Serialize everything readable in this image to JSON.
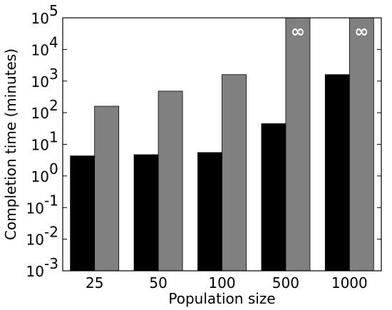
{
  "chart_data": {
    "type": "bar",
    "title": "",
    "xlabel": "Population size",
    "ylabel": "Completion time (minutes)",
    "y_scale": "log",
    "ylim": [
      0.001,
      100000
    ],
    "grid": false,
    "categories": [
      "25",
      "50",
      "100",
      "500",
      "1000"
    ],
    "y_ticks": [
      {
        "value": 0.001,
        "base": "10",
        "exp": "-3"
      },
      {
        "value": 0.01,
        "base": "10",
        "exp": "-2"
      },
      {
        "value": 0.1,
        "base": "10",
        "exp": "-1"
      },
      {
        "value": 1,
        "base": "10",
        "exp": "0"
      },
      {
        "value": 10,
        "base": "10",
        "exp": "1"
      },
      {
        "value": 100,
        "base": "10",
        "exp": "2"
      },
      {
        "value": 1000,
        "base": "10",
        "exp": "3"
      },
      {
        "value": 10000,
        "base": "10",
        "exp": "4"
      },
      {
        "value": 100000,
        "base": "10",
        "exp": "5"
      }
    ],
    "series": [
      {
        "color": "#000000",
        "values": [
          4.3,
          4.7,
          5.5,
          45,
          1600
        ],
        "annotations": [
          "",
          "",
          "",
          "",
          ""
        ]
      },
      {
        "color": "#808080",
        "values": [
          160,
          480,
          1600,
          100000,
          100000
        ],
        "annotations": [
          "",
          "",
          "",
          "∞",
          "∞"
        ]
      }
    ]
  }
}
